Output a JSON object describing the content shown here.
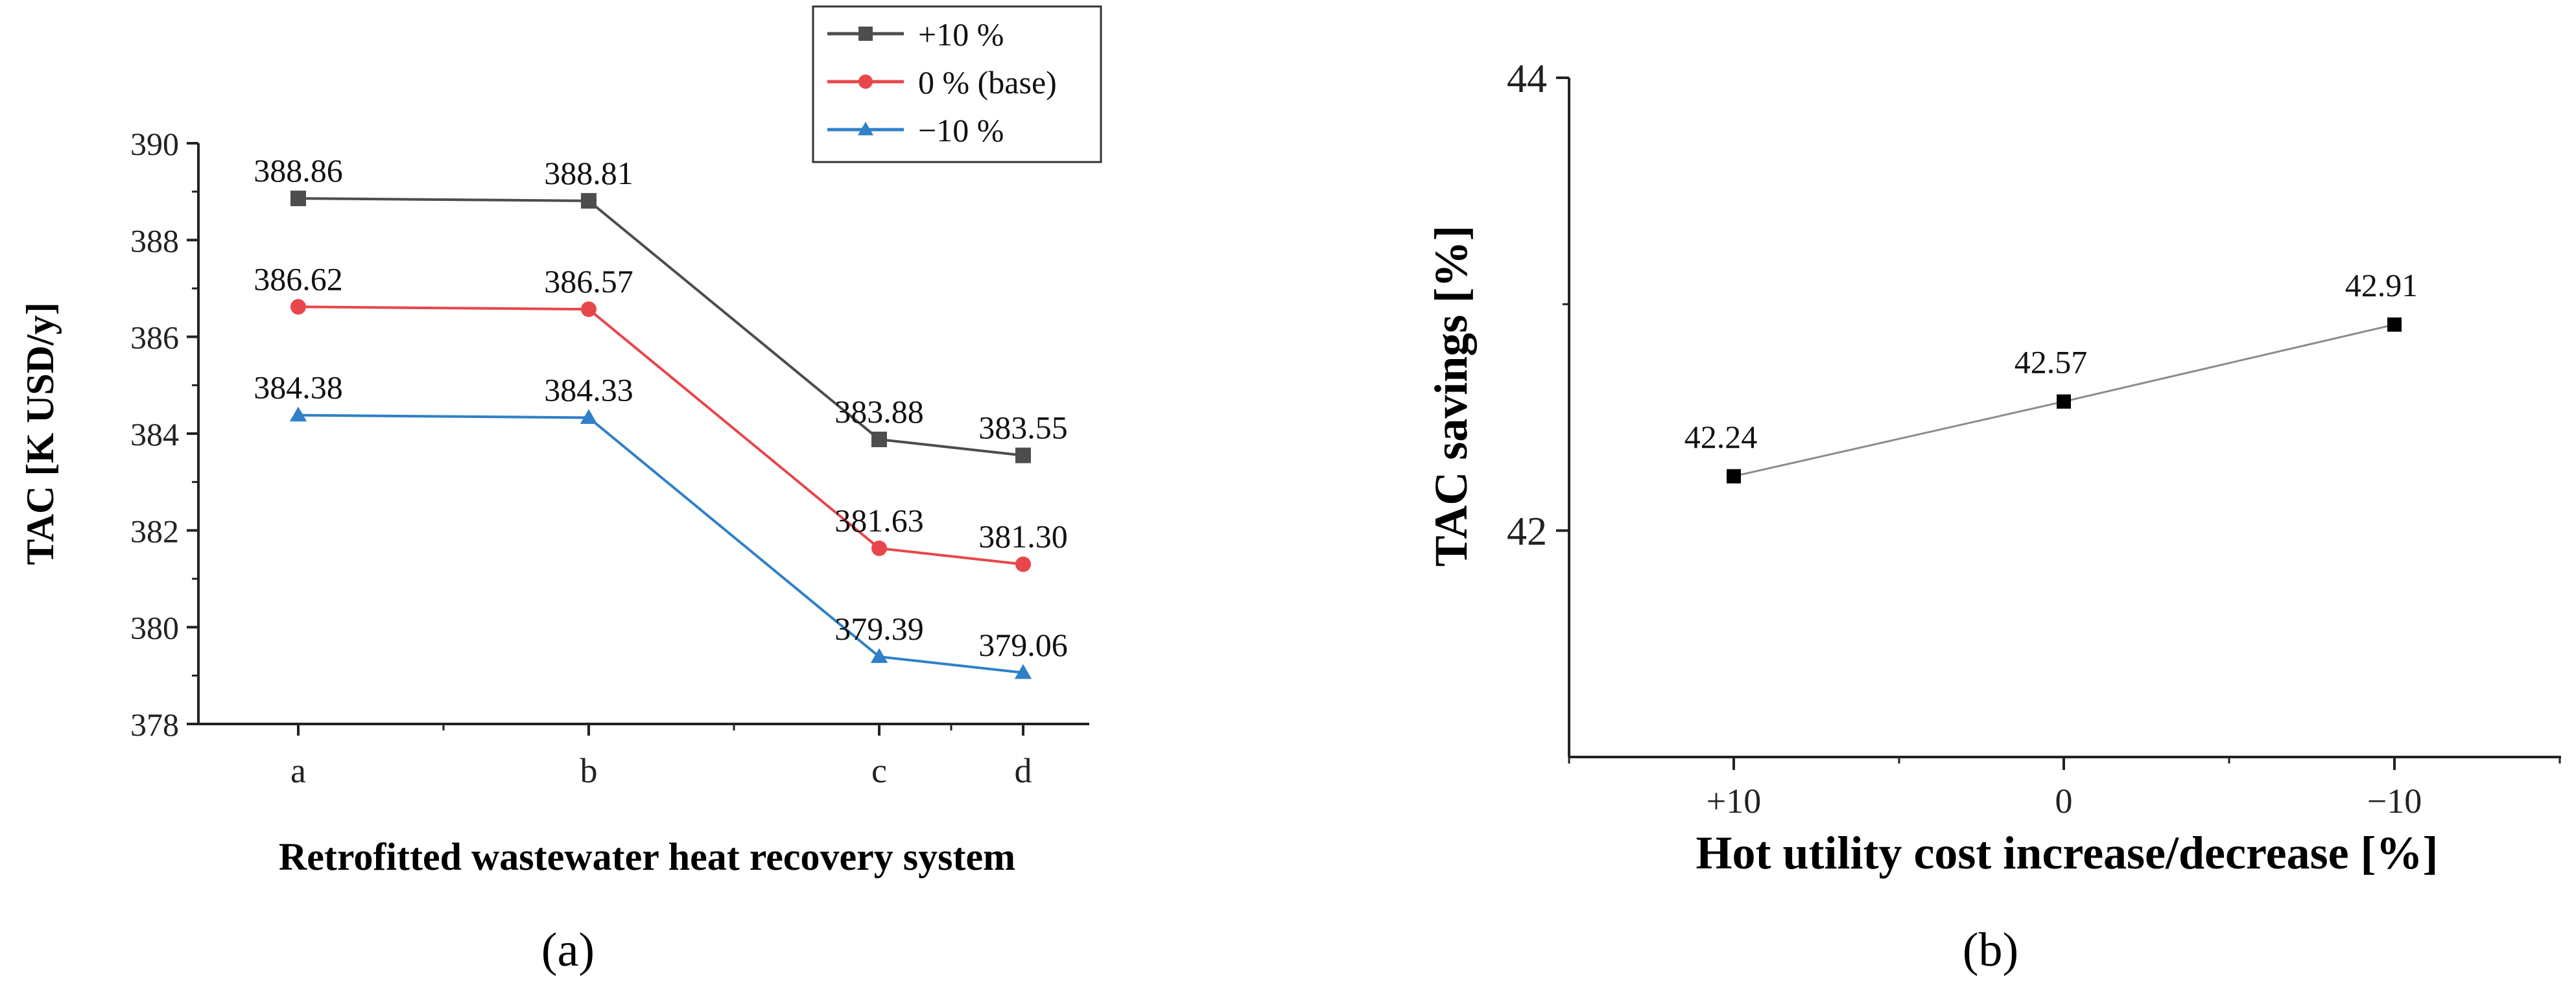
{
  "chart_data": [
    {
      "panel": "(a)",
      "type": "line",
      "xlabel": "Retrofitted wastewater heat recovery system",
      "ylabel": "TAC [K USD/y]",
      "categories": [
        "a",
        "b",
        "c",
        "d"
      ],
      "ylim": [
        378,
        390
      ],
      "yticks": [
        378,
        380,
        382,
        384,
        386,
        388,
        390
      ],
      "legend_position": "top-right",
      "series": [
        {
          "name": "+10 %",
          "color": "#4d4d4d",
          "marker": "square",
          "values": [
            388.86,
            388.81,
            383.88,
            383.55
          ],
          "labels": [
            "388.86",
            "388.81",
            "383.88",
            "383.55"
          ]
        },
        {
          "name": "0 % (base)",
          "color": "#e8464a",
          "marker": "circle",
          "values": [
            386.62,
            386.57,
            381.63,
            381.3
          ],
          "labels": [
            "386.62",
            "386.57",
            "381.63",
            "381.30"
          ]
        },
        {
          "name": "−10 %",
          "color": "#2f80c8",
          "marker": "triangle",
          "values": [
            384.38,
            384.33,
            379.39,
            379.06
          ],
          "labels": [
            "384.38",
            "384.33",
            "379.39",
            "379.06"
          ]
        }
      ]
    },
    {
      "panel": "(b)",
      "type": "line",
      "xlabel": "Hot utility cost increase/decrease [%]",
      "ylabel": "TAC savings [%]",
      "categories": [
        "+10",
        "0",
        "−10"
      ],
      "ylim": [
        41.0,
        44.0
      ],
      "yticks": [
        42,
        44
      ],
      "series": [
        {
          "name": "TAC savings",
          "color": "#000000",
          "line_color": "#8c8c8c",
          "marker": "square",
          "values": [
            42.24,
            42.57,
            42.91
          ],
          "labels": [
            "42.24",
            "42.57",
            "42.91"
          ]
        }
      ]
    }
  ]
}
